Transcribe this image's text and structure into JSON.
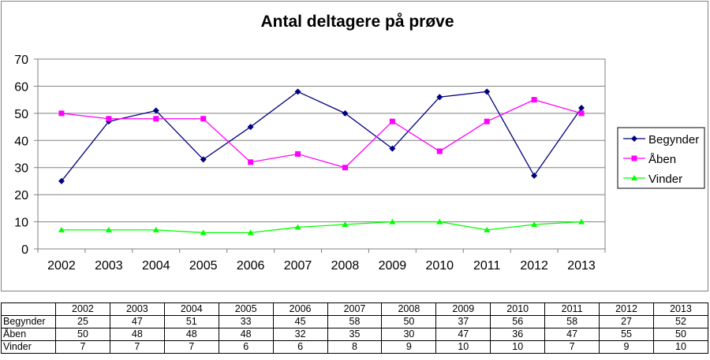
{
  "chart_data": {
    "type": "line",
    "title": "Antal deltagere på prøve",
    "xlabel": "",
    "ylabel": "",
    "categories": [
      "2002",
      "2003",
      "2004",
      "2005",
      "2006",
      "2007",
      "2008",
      "2009",
      "2010",
      "2011",
      "2012",
      "2013"
    ],
    "ylim": [
      0,
      70
    ],
    "yticks": [
      0,
      10,
      20,
      30,
      40,
      50,
      60,
      70
    ],
    "grid": true,
    "legend": "right",
    "series": [
      {
        "name": "Begynder",
        "color": "#000080",
        "marker": "diamond",
        "values": [
          25,
          47,
          51,
          33,
          45,
          58,
          50,
          37,
          56,
          58,
          27,
          52
        ]
      },
      {
        "name": "Åben",
        "color": "#FF00FF",
        "marker": "square",
        "values": [
          50,
          48,
          48,
          48,
          32,
          35,
          30,
          47,
          36,
          47,
          55,
          50
        ]
      },
      {
        "name": "Vinder",
        "color": "#00FF00",
        "marker": "triangle",
        "values": [
          7,
          7,
          7,
          6,
          6,
          8,
          9,
          10,
          10,
          7,
          9,
          10
        ]
      }
    ]
  }
}
